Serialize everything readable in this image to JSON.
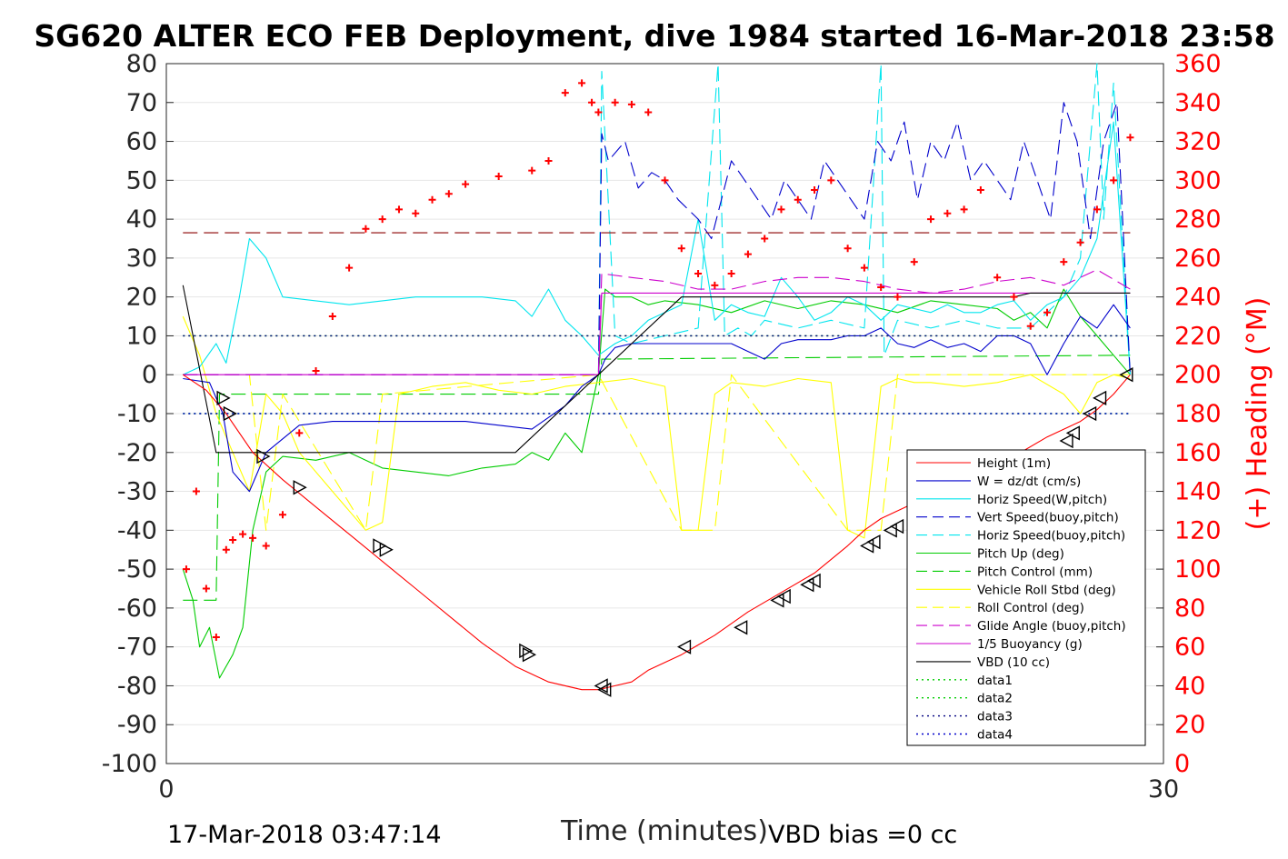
{
  "chart_data": {
    "type": "line",
    "title": "SG620 ALTER ECO FEB Deployment, dive 1984 started 16-Mar-2018 23:58",
    "xlabel": "Time (minutes)",
    "ylabel_right": "(+) Heading (°M)",
    "xlim": [
      0,
      30
    ],
    "ylim": [
      -100,
      80
    ],
    "ylim_right": [
      0,
      360
    ],
    "x_ticks": [
      "0",
      "30"
    ],
    "y_ticks": [
      "80",
      "70",
      "60",
      "50",
      "40",
      "30",
      "20",
      "10",
      "0",
      "-10",
      "-20",
      "-30",
      "-40",
      "-50",
      "-60",
      "-70",
      "-80",
      "-90",
      "-100"
    ],
    "y_ticks_right": [
      "360",
      "340",
      "320",
      "300",
      "280",
      "260",
      "240",
      "220",
      "200",
      "180",
      "160",
      "140",
      "120",
      "100",
      "80",
      "60",
      "40",
      "20",
      "0"
    ],
    "grid": "horizontal",
    "legend_position": "lower-right",
    "footer_left": "17-Mar-2018 03:47:14",
    "footer_right": "VBD bias =0 cc",
    "series": [
      {
        "name": "Height (1m)",
        "color": "#ff0000",
        "style": "solid",
        "x": [
          0.5,
          1.2,
          1.8,
          2.6,
          3.5,
          4.5,
          5.5,
          6.5,
          7.5,
          8.5,
          9.5,
          10.5,
          11.5,
          12.5,
          13.0,
          13.5,
          14.0,
          14.5,
          15.5,
          16.5,
          17.5,
          18.5,
          19.5,
          20.5,
          21.0,
          21.5,
          22.5,
          23.5,
          24.5,
          25.5,
          26.5,
          27.5,
          28.0,
          28.5,
          29.0
        ],
        "y": [
          0,
          -4,
          -10,
          -20,
          -27,
          -34,
          -41,
          -48,
          -55,
          -62,
          -69,
          -75,
          -79,
          -81,
          -81,
          -80,
          -79,
          -76,
          -72,
          -67,
          -61,
          -56,
          -51,
          -44,
          -40,
          -37,
          -33,
          -29,
          -25,
          -21,
          -16,
          -12,
          -9,
          -5,
          0
        ]
      },
      {
        "name": "W = dz/dt (cm/s)",
        "color": "#0000cc",
        "style": "solid",
        "x": [
          0.5,
          1.3,
          1.7,
          2.0,
          2.5,
          3.0,
          4.0,
          5.0,
          6.0,
          7.0,
          8.0,
          9.0,
          10.0,
          11.0,
          12.0,
          12.5,
          13.0,
          13.2,
          13.5,
          14.0,
          15.0,
          16.0,
          17.0,
          17.5,
          18.0,
          18.5,
          19.0,
          19.5,
          20.0,
          20.5,
          21.0,
          21.5,
          22.0,
          22.5,
          23.0,
          23.5,
          24.0,
          24.5,
          25.0,
          25.5,
          26.0,
          26.5,
          27.0,
          27.5,
          28.0,
          28.5,
          29.0
        ],
        "y": [
          -1,
          -2,
          -10,
          -25,
          -30,
          -20,
          -13,
          -12,
          -12,
          -12,
          -12,
          -12,
          -13,
          -14,
          -8,
          -3,
          0,
          4,
          7,
          8,
          8,
          8,
          8,
          6,
          4,
          8,
          9,
          9,
          9,
          10,
          10,
          12,
          8,
          7,
          9,
          7,
          8,
          6,
          10,
          10,
          8,
          0,
          8,
          15,
          12,
          18,
          12
        ]
      },
      {
        "name": "Horiz Speed(W,pitch)",
        "color": "#00e5ee",
        "style": "solid",
        "x": [
          0.5,
          1.0,
          1.5,
          1.8,
          2.2,
          2.5,
          3.0,
          3.5,
          4.5,
          5.5,
          6.5,
          7.5,
          8.5,
          9.5,
          10.5,
          11.0,
          11.5,
          12.0,
          12.5,
          13.0,
          13.5,
          14.0,
          14.5,
          15.0,
          15.5,
          16.0,
          16.5,
          17.0,
          17.5,
          18.0,
          18.5,
          19.0,
          19.5,
          20.0,
          20.5,
          21.0,
          21.5,
          22.0,
          22.5,
          23.0,
          23.5,
          24.0,
          24.5,
          25.0,
          25.5,
          26.0,
          26.5,
          27.0,
          27.5,
          28.0,
          28.5,
          29.0
        ],
        "y": [
          0,
          2,
          8,
          3,
          20,
          35,
          30,
          20,
          19,
          18,
          19,
          20,
          20,
          20,
          19,
          15,
          22,
          14,
          10,
          5,
          8,
          10,
          14,
          16,
          18,
          40,
          14,
          18,
          16,
          15,
          25,
          20,
          14,
          16,
          20,
          18,
          14,
          18,
          17,
          16,
          18,
          16,
          16,
          18,
          19,
          14,
          18,
          20,
          25,
          35,
          65,
          0
        ]
      },
      {
        "name": "Vert Speed(buoy,pitch)",
        "color": "#0000cc",
        "style": "dashed",
        "x": [
          0.5,
          13.0,
          13.1,
          13.3,
          13.8,
          14.2,
          14.6,
          15.0,
          15.4,
          16.0,
          16.4,
          17.0,
          17.4,
          17.8,
          18.2,
          18.6,
          19.0,
          19.4,
          19.8,
          20.2,
          20.6,
          21.0,
          21.4,
          21.8,
          22.2,
          22.6,
          23.0,
          23.4,
          23.8,
          24.2,
          24.6,
          25.0,
          25.4,
          25.8,
          26.2,
          26.6,
          27.0,
          27.4,
          27.8,
          28.2,
          28.6,
          29.0
        ],
        "y": [
          0,
          0,
          62,
          55,
          60,
          48,
          52,
          50,
          45,
          40,
          35,
          55,
          50,
          45,
          40,
          50,
          45,
          40,
          55,
          50,
          45,
          40,
          60,
          55,
          65,
          45,
          60,
          55,
          65,
          50,
          55,
          50,
          45,
          60,
          50,
          40,
          70,
          60,
          35,
          60,
          70,
          0
        ]
      },
      {
        "name": "Horiz Speed(buoy,pitch)",
        "color": "#00e5ee",
        "style": "dashed",
        "x": [
          0.5,
          13.0,
          13.1,
          13.5,
          14.0,
          15.0,
          16.0,
          16.6,
          16.8,
          17.2,
          17.6,
          18.0,
          19.0,
          20.0,
          21.0,
          21.5,
          21.6,
          22.0,
          23.0,
          24.0,
          25.0,
          26.0,
          27.0,
          27.5,
          28.0,
          28.2,
          28.5,
          29.0
        ],
        "y": [
          0,
          0,
          78,
          10,
          8,
          10,
          12,
          80,
          10,
          12,
          10,
          14,
          12,
          14,
          12,
          80,
          5,
          14,
          12,
          14,
          12,
          12,
          20,
          30,
          80,
          40,
          75,
          0
        ]
      },
      {
        "name": "Pitch Up (deg)",
        "color": "#00cc00",
        "style": "solid",
        "x": [
          0.5,
          0.8,
          1.0,
          1.3,
          1.6,
          2.0,
          2.3,
          2.6,
          3.0,
          3.5,
          4.5,
          5.5,
          6.5,
          7.5,
          8.5,
          9.5,
          10.5,
          11.0,
          11.5,
          12.0,
          12.5,
          13.0,
          13.2,
          13.5,
          14.0,
          14.5,
          15.0,
          16.0,
          17.0,
          18.0,
          19.0,
          20.0,
          21.0,
          22.0,
          23.0,
          24.0,
          25.0,
          25.5,
          26.0,
          26.5,
          27.0,
          27.5,
          28.0,
          28.5,
          29.0
        ],
        "y": [
          -50,
          -58,
          -70,
          -65,
          -78,
          -72,
          -65,
          -40,
          -25,
          -21,
          -22,
          -20,
          -24,
          -25,
          -26,
          -24,
          -23,
          -20,
          -22,
          -15,
          -20,
          0,
          22,
          20,
          20,
          18,
          19,
          18,
          16,
          19,
          17,
          19,
          18,
          16,
          19,
          18,
          17,
          14,
          16,
          12,
          22,
          15,
          10,
          5,
          0
        ]
      },
      {
        "name": "Pitch Control (mm)",
        "color": "#00cc00",
        "style": "dashed",
        "x": [
          0.5,
          1.5,
          1.6,
          2.5,
          2.6,
          13.0,
          13.1,
          29.0
        ],
        "y": [
          -58,
          -58,
          -5,
          -5,
          -5,
          -5,
          4,
          5
        ]
      },
      {
        "name": "Vehicle Roll Stbd (deg)",
        "color": "#ffff00",
        "style": "solid",
        "x": [
          0.5,
          1.0,
          1.5,
          2.0,
          2.5,
          3.0,
          3.5,
          4.0,
          5.0,
          6.0,
          6.5,
          7.0,
          8.0,
          9.0,
          10.0,
          11.0,
          12.0,
          13.0,
          14.0,
          15.0,
          15.5,
          16.0,
          16.5,
          17.0,
          18.0,
          19.0,
          20.0,
          20.5,
          21.0,
          21.5,
          22.0,
          22.5,
          23.0,
          24.0,
          25.0,
          25.5,
          26.0,
          27.0,
          27.5,
          28.0,
          28.5,
          29.0
        ],
        "y": [
          15,
          5,
          -10,
          -20,
          -30,
          -5,
          -10,
          -20,
          -30,
          -40,
          -38,
          -5,
          -3,
          -2,
          -4,
          -5,
          -3,
          -2,
          -1,
          -3,
          -40,
          -40,
          -5,
          -2,
          -3,
          -1,
          -2,
          -40,
          -42,
          -3,
          -1,
          -2,
          -2,
          -3,
          -2,
          -1,
          0,
          -5,
          -10,
          -2,
          0,
          -1
        ]
      },
      {
        "name": "Roll Control (deg)",
        "color": "#ffff00",
        "style": "dashed",
        "x": [
          0.5,
          2.5,
          3.0,
          3.5,
          6.0,
          6.5,
          13.0,
          15.5,
          16.5,
          17.0,
          20.5,
          21.5,
          22.0,
          29.0
        ],
        "y": [
          0,
          0,
          -40,
          -5,
          -40,
          -5,
          0,
          -40,
          -40,
          0,
          -40,
          -40,
          0,
          0
        ]
      },
      {
        "name": "Glide Angle (buoy,pitch)",
        "color": "#cc00cc",
        "style": "dashed",
        "x": [
          0.5,
          13.0,
          13.1,
          14.0,
          15.0,
          16.0,
          17.0,
          18.0,
          19.0,
          20.0,
          21.0,
          22.0,
          23.0,
          24.0,
          25.0,
          26.0,
          27.0,
          28.0,
          29.0
        ],
        "y": [
          0,
          0,
          26,
          25,
          24,
          22,
          22,
          24,
          25,
          25,
          24,
          22,
          21,
          22,
          24,
          25,
          23,
          27,
          22
        ]
      },
      {
        "name": "1/5 Buoyancy (g)",
        "color": "#cc00cc",
        "style": "solid",
        "x": [
          0.5,
          13.0,
          13.1,
          29.0
        ],
        "y": [
          0,
          0,
          21,
          21
        ]
      },
      {
        "name": "VBD (10 cc)",
        "color": "#000000",
        "style": "solid",
        "x": [
          0.5,
          1.5,
          10.5,
          13.0,
          15.5,
          25.5,
          26.0,
          29.0
        ],
        "y": [
          23,
          -20,
          -20,
          0,
          20,
          20,
          21,
          21
        ]
      },
      {
        "name": "data1",
        "color": "#00cc00",
        "style": "dotted",
        "x": [
          0.5,
          29.0
        ],
        "y": [
          10,
          10
        ]
      },
      {
        "name": "data2",
        "color": "#00cc00",
        "style": "dotted",
        "x": [
          0.5,
          29.0
        ],
        "y": [
          -10,
          -10
        ]
      },
      {
        "name": "data3",
        "color": "#000080",
        "style": "dotted",
        "x": [
          0.5,
          29.0
        ],
        "y": [
          10,
          10
        ]
      },
      {
        "name": "data4",
        "color": "#0000cc",
        "style": "dotted",
        "x": [
          0.5,
          29.0
        ],
        "y": [
          -10,
          -10
        ]
      }
    ],
    "heading_marker": {
      "color": "#8b0000",
      "style": "dashed",
      "value_right": 273
    },
    "heading_points": {
      "color": "#ff0000",
      "marker": "+",
      "x": [
        0.6,
        0.9,
        1.2,
        1.5,
        1.8,
        2.0,
        2.3,
        2.6,
        3.0,
        3.5,
        4.0,
        4.5,
        5.0,
        5.5,
        6.0,
        6.5,
        7.0,
        7.5,
        8.0,
        8.5,
        9.0,
        10.0,
        11.0,
        11.5,
        12.0,
        12.5,
        12.8,
        13.0,
        13.5,
        14.0,
        14.5,
        15.0,
        15.5,
        16.0,
        16.5,
        17.0,
        17.5,
        18.0,
        18.5,
        19.0,
        19.5,
        20.0,
        20.5,
        21.0,
        21.5,
        22.0,
        22.5,
        23.0,
        23.5,
        24.0,
        24.5,
        25.0,
        25.5,
        26.0,
        26.5,
        27.0,
        27.5,
        28.0,
        28.5,
        29.0
      ],
      "y": [
        100,
        140,
        90,
        65,
        110,
        115,
        118,
        116,
        112,
        128,
        170,
        202,
        230,
        255,
        275,
        280,
        285,
        283,
        290,
        293,
        298,
        302,
        305,
        310,
        345,
        350,
        340,
        335,
        340,
        339,
        335,
        300,
        265,
        252,
        246,
        252,
        262,
        270,
        285,
        290,
        295,
        300,
        265,
        255,
        245,
        240,
        258,
        280,
        283,
        285,
        295,
        250,
        240,
        225,
        232,
        258,
        268,
        285,
        300,
        322
      ]
    },
    "dive_markers": {
      "color": "#000000",
      "marker": "triangle",
      "x": [
        1.7,
        1.9,
        2.9,
        4.0,
        6.4,
        6.6,
        10.8,
        10.9,
        13.1,
        13.2,
        15.6,
        17.3,
        18.4,
        18.6,
        19.3,
        19.5,
        21.1,
        21.3,
        21.8,
        22.0,
        23.2,
        23.4,
        23.7,
        23.9,
        27.1,
        27.3,
        27.8,
        28.1,
        28.9
      ],
      "y": [
        -6,
        -10,
        -21,
        -29,
        -44,
        -45,
        -71,
        -72,
        -80,
        -81,
        -70,
        -65,
        -58,
        -57,
        -54,
        -53,
        -44,
        -43,
        -40,
        -39,
        -32,
        -31,
        -30,
        -29,
        -17,
        -15,
        -10,
        -6,
        0
      ]
    }
  }
}
